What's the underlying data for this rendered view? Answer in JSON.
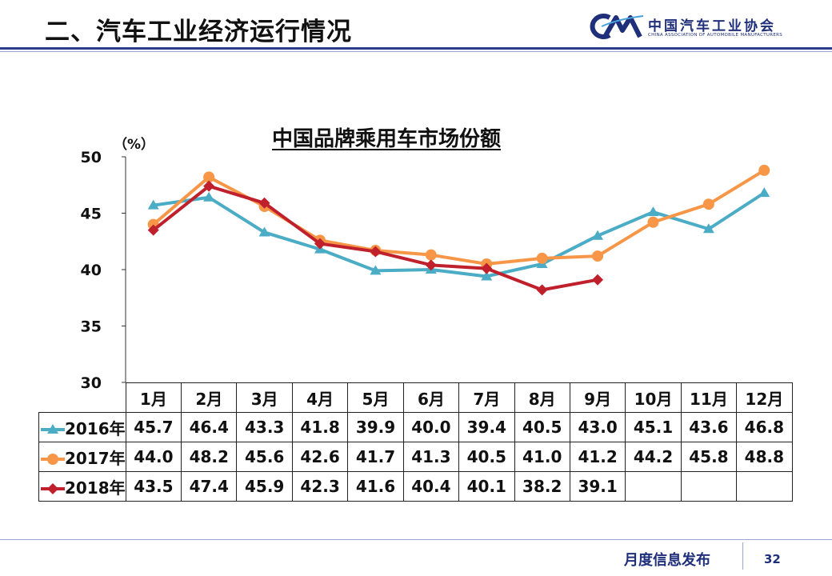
{
  "header": {
    "title": "二、汽车工业经济运行情况",
    "logo_cn": "中国汽车工业协会",
    "logo_en": "CHINA ASSOCIATION OF AUTOMOBILE MANUFACTURERS",
    "logo_mark": "CM"
  },
  "footer": {
    "label": "月度信息发布",
    "page_number": "32"
  },
  "colors": {
    "2016": "#4bacc6",
    "2017": "#f79646",
    "2018": "#c0202c",
    "brand": "#1f2f7a"
  },
  "chart_data": {
    "type": "line",
    "title": "中国品牌乘用车市场份额",
    "ylabel": "（%）",
    "ylim": [
      30,
      50
    ],
    "yticks": [
      30,
      35,
      40,
      45,
      50
    ],
    "grid": false,
    "categories": [
      "1月",
      "2月",
      "3月",
      "4月",
      "5月",
      "6月",
      "7月",
      "8月",
      "9月",
      "10月",
      "11月",
      "12月"
    ],
    "series": [
      {
        "name": "2016年",
        "marker": "triangle",
        "color": "#4bacc6",
        "values": [
          45.7,
          46.4,
          43.3,
          41.8,
          39.9,
          40.0,
          39.4,
          40.5,
          43.0,
          45.1,
          43.6,
          46.8
        ],
        "labels": [
          "45.7",
          "46.4",
          "43.3",
          "41.8",
          "39.9",
          "40.0",
          "39.4",
          "40.5",
          "43.0",
          "45.1",
          "43.6",
          "46.8"
        ]
      },
      {
        "name": "2017年",
        "marker": "circle",
        "color": "#f79646",
        "values": [
          44.0,
          48.2,
          45.6,
          42.6,
          41.7,
          41.3,
          40.5,
          41.0,
          41.2,
          44.2,
          45.8,
          48.8
        ],
        "labels": [
          "44.0",
          "48.2",
          "45.6",
          "42.6",
          "41.7",
          "41.3",
          "40.5",
          "41.0",
          "41.2",
          "44.2",
          "45.8",
          "48.8"
        ]
      },
      {
        "name": "2018年",
        "marker": "diamond",
        "color": "#c0202c",
        "values": [
          43.5,
          47.4,
          45.9,
          42.3,
          41.6,
          40.4,
          40.1,
          38.2,
          39.1,
          null,
          null,
          null
        ],
        "labels": [
          "43.5",
          "47.4",
          "45.9",
          "42.3",
          "41.6",
          "40.4",
          "40.1",
          "38.2",
          "39.1",
          "",
          "",
          ""
        ]
      }
    ]
  }
}
